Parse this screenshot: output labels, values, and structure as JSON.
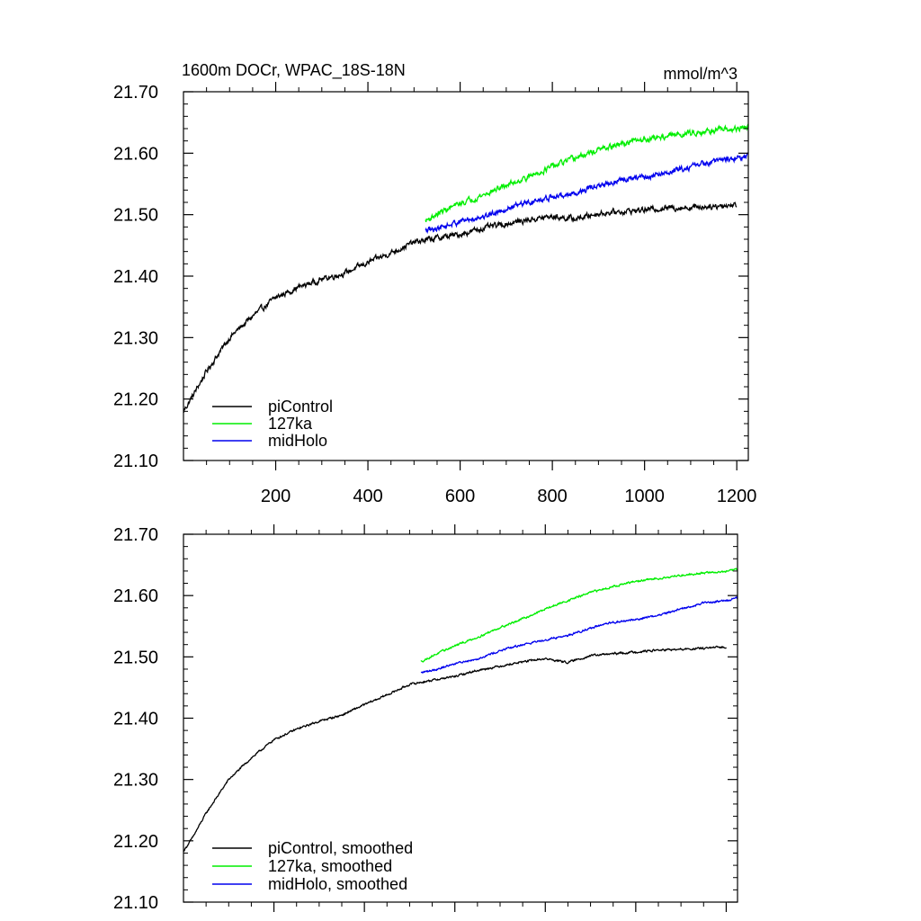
{
  "chart_data": [
    {
      "type": "line",
      "title": "1600m DOCr, WPAC_18S-18N",
      "units": "mmol/m^3",
      "xlim": [
        0,
        1225
      ],
      "ylim": [
        21.1,
        21.7
      ],
      "yticks": [
        21.1,
        21.2,
        21.3,
        21.4,
        21.5,
        21.6,
        21.7
      ],
      "ytick_labels": [
        "21.10",
        "21.20",
        "21.30",
        "21.40",
        "21.50",
        "21.60",
        "21.70"
      ],
      "xticks": [
        200,
        400,
        600,
        800,
        1000,
        1200
      ],
      "xtick_labels": [
        "200",
        "400",
        "600",
        "800",
        "1000",
        "1200"
      ],
      "legend_position": "bottom-left",
      "series": [
        {
          "name": "piControl",
          "color": "#000000",
          "noise": 0.0035,
          "points": [
            [
              0,
              21.18
            ],
            [
              20,
              21.205
            ],
            [
              50,
              21.245
            ],
            [
              100,
              21.3
            ],
            [
              150,
              21.335
            ],
            [
              200,
              21.365
            ],
            [
              250,
              21.382
            ],
            [
              300,
              21.395
            ],
            [
              350,
              21.405
            ],
            [
              400,
              21.422
            ],
            [
              450,
              21.438
            ],
            [
              500,
              21.455
            ],
            [
              550,
              21.462
            ],
            [
              600,
              21.468
            ],
            [
              650,
              21.478
            ],
            [
              700,
              21.485
            ],
            [
              750,
              21.492
            ],
            [
              800,
              21.497
            ],
            [
              850,
              21.493
            ],
            [
              900,
              21.502
            ],
            [
              950,
              21.505
            ],
            [
              1000,
              21.508
            ],
            [
              1050,
              21.511
            ],
            [
              1100,
              21.512
            ],
            [
              1150,
              21.514
            ],
            [
              1200,
              21.516
            ]
          ]
        },
        {
          "name": "127ka",
          "color": "#00ee00",
          "noise": 0.0035,
          "points": [
            [
              525,
              21.49
            ],
            [
              560,
              21.505
            ],
            [
              600,
              21.518
            ],
            [
              650,
              21.532
            ],
            [
              700,
              21.548
            ],
            [
              750,
              21.562
            ],
            [
              800,
              21.578
            ],
            [
              850,
              21.592
            ],
            [
              900,
              21.605
            ],
            [
              950,
              21.615
            ],
            [
              1000,
              21.623
            ],
            [
              1050,
              21.628
            ],
            [
              1100,
              21.633
            ],
            [
              1150,
              21.637
            ],
            [
              1200,
              21.639
            ],
            [
              1225,
              21.643
            ]
          ]
        },
        {
          "name": "midHolo",
          "color": "#0000ee",
          "noise": 0.0035,
          "points": [
            [
              525,
              21.473
            ],
            [
              560,
              21.48
            ],
            [
              600,
              21.489
            ],
            [
              650,
              21.497
            ],
            [
              700,
              21.51
            ],
            [
              750,
              21.52
            ],
            [
              800,
              21.528
            ],
            [
              850,
              21.535
            ],
            [
              900,
              21.547
            ],
            [
              950,
              21.556
            ],
            [
              1000,
              21.561
            ],
            [
              1050,
              21.568
            ],
            [
              1100,
              21.578
            ],
            [
              1150,
              21.588
            ],
            [
              1200,
              21.592
            ],
            [
              1225,
              21.596
            ]
          ]
        }
      ]
    },
    {
      "type": "line",
      "title": "",
      "xlim": [
        0,
        1225
      ],
      "ylim": [
        21.1,
        21.7
      ],
      "yticks": [
        21.1,
        21.2,
        21.3,
        21.4,
        21.5,
        21.6,
        21.7
      ],
      "ytick_labels": [
        "21.10",
        "21.20",
        "21.30",
        "21.40",
        "21.50",
        "21.60",
        "21.70"
      ],
      "xticks": [
        200,
        400,
        600,
        800,
        1000,
        1200
      ],
      "xtick_labels": [],
      "legend_position": "bottom-left",
      "series": [
        {
          "name": "piControl, smoothed",
          "color": "#000000",
          "noise": 0.0012,
          "points": [
            [
              0,
              21.183
            ],
            [
              20,
              21.205
            ],
            [
              50,
              21.245
            ],
            [
              100,
              21.3
            ],
            [
              150,
              21.335
            ],
            [
              200,
              21.365
            ],
            [
              250,
              21.382
            ],
            [
              300,
              21.395
            ],
            [
              350,
              21.405
            ],
            [
              400,
              21.422
            ],
            [
              450,
              21.438
            ],
            [
              500,
              21.455
            ],
            [
              550,
              21.462
            ],
            [
              600,
              21.468
            ],
            [
              650,
              21.478
            ],
            [
              700,
              21.485
            ],
            [
              750,
              21.492
            ],
            [
              800,
              21.497
            ],
            [
              850,
              21.491
            ],
            [
              900,
              21.502
            ],
            [
              950,
              21.505
            ],
            [
              1000,
              21.508
            ],
            [
              1050,
              21.511
            ],
            [
              1100,
              21.512
            ],
            [
              1150,
              21.514
            ],
            [
              1200,
              21.516
            ]
          ]
        },
        {
          "name": "127ka, smoothed",
          "color": "#00ee00",
          "noise": 0.0012,
          "points": [
            [
              525,
              21.492
            ],
            [
              560,
              21.505
            ],
            [
              600,
              21.518
            ],
            [
              650,
              21.532
            ],
            [
              700,
              21.548
            ],
            [
              750,
              21.562
            ],
            [
              800,
              21.578
            ],
            [
              850,
              21.592
            ],
            [
              900,
              21.605
            ],
            [
              950,
              21.615
            ],
            [
              1000,
              21.623
            ],
            [
              1050,
              21.628
            ],
            [
              1100,
              21.633
            ],
            [
              1150,
              21.637
            ],
            [
              1200,
              21.639
            ],
            [
              1225,
              21.643
            ]
          ]
        },
        {
          "name": "midHolo, smoothed",
          "color": "#0000ee",
          "noise": 0.0012,
          "points": [
            [
              525,
              21.474
            ],
            [
              560,
              21.48
            ],
            [
              600,
              21.489
            ],
            [
              650,
              21.497
            ],
            [
              700,
              21.51
            ],
            [
              750,
              21.52
            ],
            [
              800,
              21.528
            ],
            [
              850,
              21.535
            ],
            [
              900,
              21.547
            ],
            [
              950,
              21.556
            ],
            [
              1000,
              21.561
            ],
            [
              1050,
              21.568
            ],
            [
              1100,
              21.578
            ],
            [
              1150,
              21.588
            ],
            [
              1200,
              21.592
            ],
            [
              1225,
              21.596
            ]
          ]
        }
      ]
    }
  ]
}
